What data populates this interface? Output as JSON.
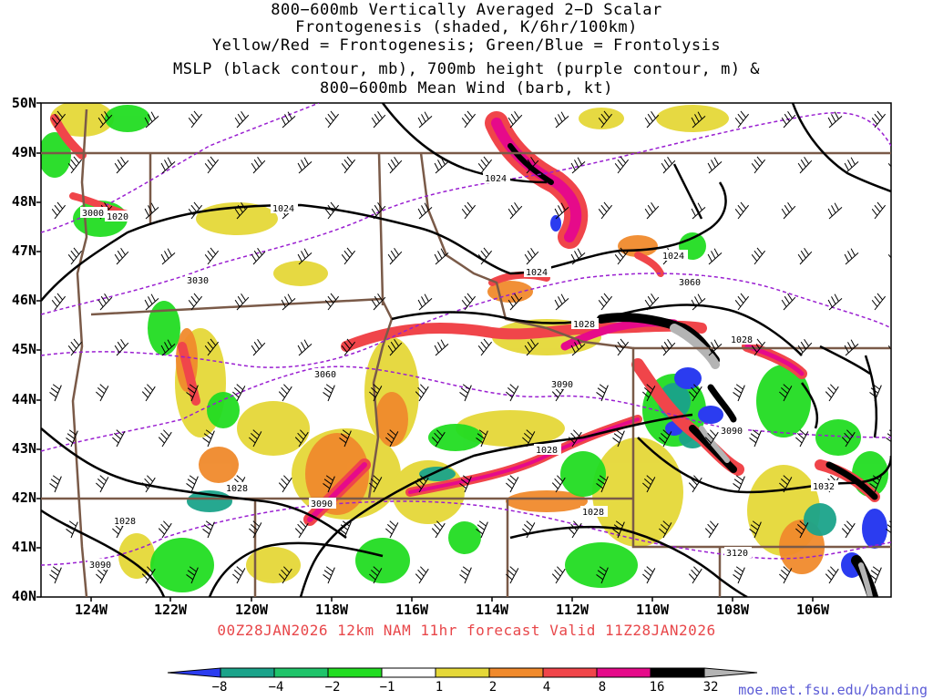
{
  "titles": {
    "line1": "800−600mb Vertically Averaged 2−D Scalar",
    "line2": "Frontogenesis (shaded, K/6hr/100km)",
    "line3": "Yellow/Red = Frontogenesis;  Green/Blue = Frontolysis",
    "line4": "MSLP (black contour, mb), 700mb height (purple contour, m) &",
    "line5": "800−600mb Mean Wind (barb, kt)"
  },
  "valid_time": "00Z28JAN2026 12km NAM 11hr forecast Valid 11Z28JAN2026",
  "credit": "moe.met.fsu.edu/banding",
  "lat_labels": [
    "50N",
    "49N",
    "48N",
    "47N",
    "46N",
    "45N",
    "44N",
    "43N",
    "42N",
    "41N",
    "40N"
  ],
  "lon_labels": [
    "124W",
    "122W",
    "120W",
    "118W",
    "116W",
    "114W",
    "112W",
    "110W",
    "108W",
    "106W"
  ],
  "colorbar": {
    "labels": [
      "−8",
      "−4",
      "−2",
      "−1",
      "1",
      "2",
      "4",
      "8",
      "16",
      "32"
    ],
    "colors": [
      "#2b3cf0",
      "#1aa38a",
      "#1fc46a",
      "#22dd22",
      "#ffffff",
      "#e5d838",
      "#f08a2c",
      "#f0454a",
      "#e60a8a",
      "#000000",
      "#b4b4b4"
    ]
  },
  "mslp_labels": [
    "1024",
    "1024",
    "1024",
    "1024",
    "1020",
    "1028",
    "1028",
    "1028",
    "1028",
    "1028",
    "1028",
    "1032"
  ],
  "height_labels": [
    "3000",
    "3030",
    "3060",
    "3060",
    "3090",
    "3090",
    "3090",
    "3090",
    "3120"
  ],
  "colors": {
    "state_borders": "#7a5a48",
    "height_contour": "#9a1fd1",
    "valid_text": "#e8474a",
    "credit": "#5b5bd6"
  }
}
